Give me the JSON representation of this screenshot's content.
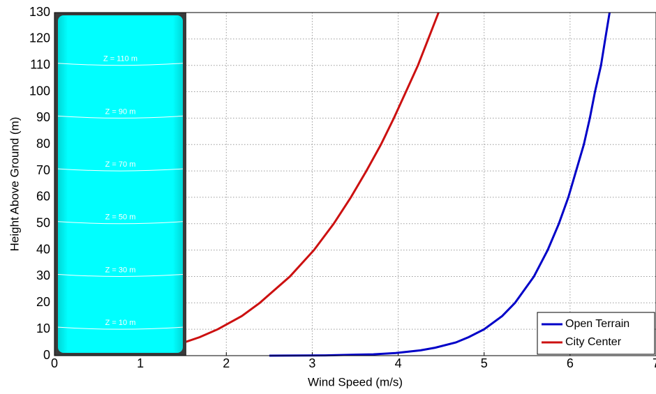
{
  "chart_data": {
    "type": "line",
    "x_label": "Wind Speed (m/s)",
    "y_label": "Height Above Ground (m)",
    "xlim": [
      0,
      7
    ],
    "ylim": [
      0,
      130
    ],
    "xticks": [
      0,
      1,
      2,
      3,
      4,
      5,
      6,
      7
    ],
    "yticks": [
      0,
      10,
      20,
      30,
      40,
      50,
      60,
      70,
      80,
      90,
      100,
      110,
      120,
      130
    ],
    "grid": true,
    "legend_position": "lower-right",
    "series": [
      {
        "name": "Open Terrain",
        "color": "#0000c8",
        "x": [
          2.5,
          3.15,
          3.71,
          3.97,
          4.26,
          4.43,
          4.67,
          4.82,
          5.0,
          5.21,
          5.36,
          5.58,
          5.74,
          5.87,
          5.98,
          6.07,
          6.16,
          6.23,
          6.29,
          6.36,
          6.41,
          6.46
        ],
        "values": [
          0.01,
          0.1,
          0.5,
          1,
          2,
          3,
          5,
          7,
          10,
          15,
          20,
          30,
          40,
          50,
          60,
          70,
          80,
          90,
          100,
          110,
          120,
          130
        ]
      },
      {
        "name": "City Center",
        "color": "#cc1010",
        "x": [
          0.7,
          0.88,
          1.11,
          1.27,
          1.51,
          1.69,
          1.9,
          2.18,
          2.39,
          2.74,
          3.02,
          3.25,
          3.45,
          3.63,
          3.8,
          3.95,
          4.09,
          4.23,
          4.35,
          4.47
        ],
        "values": [
          0.5,
          1,
          2,
          3,
          5,
          7,
          10,
          15,
          20,
          30,
          40,
          50,
          60,
          70,
          80,
          90,
          100,
          110,
          120,
          130
        ]
      }
    ],
    "annotations": [
      {
        "text": "Z = 10 m",
        "y": 10
      },
      {
        "text": "Z = 30 m",
        "y": 30
      },
      {
        "text": "Z = 50 m",
        "y": 50
      },
      {
        "text": "Z = 70 m",
        "y": 70
      },
      {
        "text": "Z = 90 m",
        "y": 90
      },
      {
        "text": "Z = 110 m",
        "y": 110
      }
    ]
  }
}
